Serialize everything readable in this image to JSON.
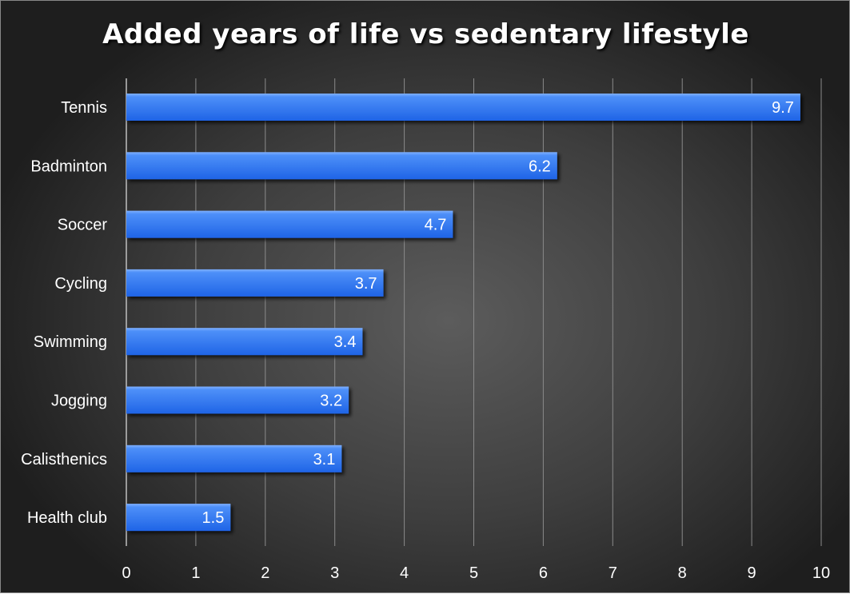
{
  "chart_data": {
    "type": "bar",
    "orientation": "horizontal",
    "title": "Added years of life vs sedentary lifestyle",
    "categories": [
      "Tennis",
      "Badminton",
      "Soccer",
      "Cycling",
      "Swimming",
      "Jogging",
      "Calisthenics",
      "Health club"
    ],
    "values": [
      9.7,
      6.2,
      4.7,
      3.7,
      3.4,
      3.2,
      3.1,
      1.5
    ],
    "xlim": [
      0,
      10
    ],
    "xticks": [
      "0",
      "1",
      "2",
      "3",
      "4",
      "5",
      "6",
      "7",
      "8",
      "9",
      "10"
    ],
    "grid": "vertical",
    "data_labels": true,
    "bar_color": "#2f78f0",
    "background_color": "#3e3e3e"
  }
}
